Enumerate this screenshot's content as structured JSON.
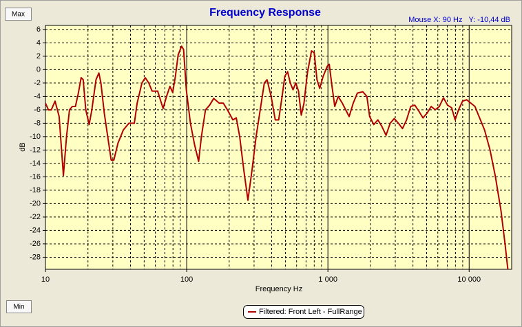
{
  "chart_data": {
    "type": "line",
    "title": "Frequency Response",
    "xlabel": "Frequency Hz",
    "ylabel": "dB",
    "log_x": true,
    "grid": true,
    "xlim": [
      10,
      20000
    ],
    "ylim": [
      -29.8,
      6.6
    ],
    "xticks": [
      10,
      100,
      {
        "value": 1000,
        "label": "1 000"
      },
      {
        "value": 10000,
        "label": "10 000"
      }
    ],
    "xminorticks": [
      20,
      30,
      40,
      50,
      60,
      70,
      80,
      90,
      200,
      300,
      400,
      500,
      600,
      700,
      800,
      900,
      2000,
      3000,
      4000,
      5000,
      6000,
      7000,
      8000,
      9000
    ],
    "yticks": [
      -28,
      -26,
      -24,
      -22,
      -20,
      -18,
      -16,
      -14,
      -12,
      -10,
      -8,
      -6,
      -4,
      -2,
      0,
      2,
      4,
      6
    ],
    "legend": "bottom",
    "x": [
      10,
      10.5,
      11,
      11.7,
      12.5,
      13.4,
      14.1,
      14.8,
      15.5,
      16.3,
      17.1,
      17.9,
      18.5,
      19.3,
      20.4,
      21.3,
      22.8,
      23.9,
      24.7,
      26.1,
      27.6,
      29.2,
      30.5,
      32.6,
      35.6,
      39,
      42.6,
      44.6,
      48.2,
      50.9,
      53.9,
      56.9,
      62.3,
      65.1,
      68.1,
      72,
      76.1,
      79.6,
      83.2,
      87,
      92,
      95.1,
      99.4,
      106.3,
      113.7,
      121.5,
      127.1,
      135.9,
      145.3,
      155.4,
      169.8,
      181.6,
      194.2,
      212.3,
      224.5,
      237.3,
      253.8,
      271.4,
      290.1,
      310.1,
      331.6,
      354.5,
      370.7,
      396.3,
      423.8,
      448.1,
      473.8,
      495.4,
      518.1,
      541.7,
      566.2,
      592.1,
      619.2,
      647.4,
      676.9,
      715.7,
      765.3,
      800.2,
      836.7,
      874.9,
      925.1,
      989,
      1022,
      1069,
      1118,
      1182,
      1264,
      1336,
      1413,
      1511,
      1616,
      1766,
      1888,
      1974,
      2111,
      2257,
      2413,
      2580,
      2759,
      2950,
      3154,
      3372,
      3606,
      3855,
      4121,
      4406,
      4710,
      5035,
      5383,
      5754,
      6152,
      6577,
      7031,
      7516,
      7955,
      8410,
      8990,
      9612,
      10280,
      10990,
      11750,
      12850,
      14060,
      15350,
      16790,
      17950,
      18790
    ],
    "series": [
      {
        "name": "Filtered: Front Left - FullRange",
        "color": "#b00000",
        "values": [
          -5,
          -6,
          -6,
          -4.7,
          -7,
          -15.8,
          -10,
          -6,
          -5.5,
          -5.5,
          -3.5,
          -1.2,
          -1.5,
          -6,
          -8.2,
          -6,
          -1.5,
          -0.5,
          -2,
          -6.5,
          -10,
          -13.5,
          -13.5,
          -11,
          -9,
          -8,
          -8,
          -5,
          -2,
          -1.2,
          -2,
          -3.2,
          -3.2,
          -4.5,
          -5.8,
          -4,
          -2.5,
          -3.4,
          -1,
          2.2,
          3.5,
          3,
          -3,
          -8,
          -11.2,
          -13.7,
          -10,
          -6,
          -5.3,
          -4.3,
          -5,
          -5,
          -6,
          -7.5,
          -7.2,
          -10,
          -15,
          -19.5,
          -15,
          -10,
          -6,
          -2,
          -1.5,
          -4,
          -7.5,
          -7.5,
          -4,
          -1,
          -0.3,
          -2,
          -3,
          -2,
          -3.2,
          -6.8,
          -5,
          -0.5,
          2.8,
          2.5,
          -1.5,
          -2.8,
          -1,
          0.5,
          0.8,
          -2.5,
          -5.5,
          -4,
          -5,
          -6,
          -7,
          -5,
          -3.5,
          -3.3,
          -4,
          -7,
          -8.2,
          -7.5,
          -8.5,
          -9.8,
          -8,
          -7.3,
          -8,
          -8.8,
          -7.5,
          -5.5,
          -5.3,
          -6.2,
          -7.2,
          -6.5,
          -5.5,
          -6,
          -5.5,
          -4.2,
          -5.3,
          -5.7,
          -7.5,
          -6,
          -4.7,
          -4.5,
          -5,
          -5.5,
          -7,
          -9,
          -12,
          -16,
          -21,
          -26,
          -29.8
        ]
      }
    ]
  },
  "controls": {
    "max": "Max",
    "min": "Min"
  },
  "status": "Mouse X: 90 Hz   Y: -10,44 dB"
}
